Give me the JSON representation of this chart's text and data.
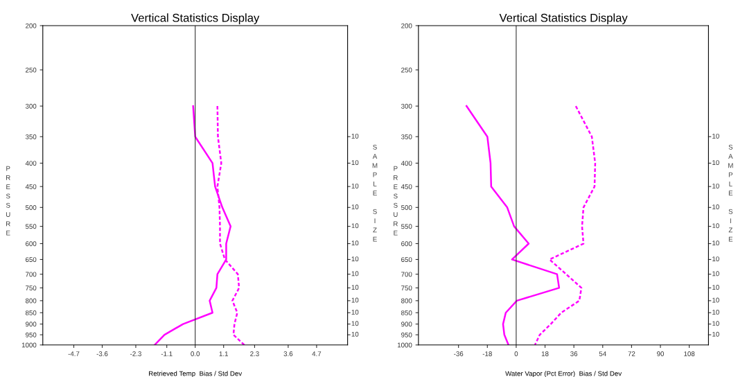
{
  "chart_data": [
    {
      "type": "line",
      "title": "Vertical Statistics Display",
      "xlabel": "Retrieved Temp  Bias / Std Dev",
      "ylabel": "PRESSURE",
      "y2label": "SAMPLE SIZE",
      "x": [
        300,
        350,
        400,
        450,
        500,
        550,
        600,
        650,
        700,
        750,
        800,
        850,
        900,
        950,
        1000
      ],
      "orientation": "horizontal",
      "log": "y",
      "series": [
        {
          "color": "#ff00ff",
          "line_style": "solid",
          "values": [
            -0.08,
            0.0,
            0.67,
            0.77,
            1.05,
            1.37,
            1.2,
            1.2,
            0.86,
            0.82,
            0.56,
            0.67,
            -0.47,
            -1.19,
            -1.57
          ]
        },
        {
          "color": "#ff00ff",
          "line_style": "dotted",
          "values": [
            0.86,
            0.88,
            1.01,
            0.86,
            0.94,
            0.96,
            0.96,
            1.15,
            1.65,
            1.7,
            1.44,
            1.63,
            1.52,
            1.48,
            1.9
          ]
        }
      ],
      "xlim": [
        -5.9,
        5.9
      ],
      "xticks": [
        -4.7,
        -3.6,
        -2.3,
        -1.1,
        {
          "value": 0,
          "label": "0.0"
        },
        1.1,
        2.3,
        3.6,
        4.7
      ],
      "ylim": [
        1000,
        200
      ],
      "yticks": [
        200,
        250,
        300,
        350,
        400,
        450,
        500,
        550,
        600,
        650,
        700,
        750,
        800,
        850,
        900,
        950,
        1000
      ],
      "annotations": [
        "10",
        "10",
        "10",
        "10",
        "10",
        "10",
        "10",
        "10",
        "10",
        "10",
        "10",
        "10",
        "10"
      ],
      "ref_lines": [
        {
          "axis": "x",
          "value": 0,
          "color": "#333333"
        }
      ],
      "grid": false
    },
    {
      "type": "line",
      "title": "Vertical Statistics Display",
      "xlabel": "Water Vapor (Pct Error)  Bias / Std Dev",
      "ylabel": "PRESSURE",
      "y2label": "SAMPLE SIZE",
      "x": [
        300,
        350,
        400,
        450,
        500,
        550,
        600,
        650,
        700,
        750,
        800,
        850,
        900,
        950,
        1000
      ],
      "orientation": "horizontal",
      "log": "y",
      "series": [
        {
          "color": "#ff00ff",
          "line_style": "solid",
          "values": [
            -31,
            -18,
            -16,
            -15.6,
            -5.6,
            -1.3,
            7.8,
            -2.6,
            25.5,
            26.8,
            0.4,
            -6.5,
            -8.2,
            -7.4,
            -4.8
          ]
        },
        {
          "color": "#ff00ff",
          "line_style": "dotted",
          "values": [
            37.2,
            47.2,
            49.3,
            48.9,
            42,
            41.1,
            42,
            20.8,
            31.2,
            40.7,
            39.4,
            28.1,
            21.6,
            14.7,
            11.7
          ]
        }
      ],
      "xlim": [
        -61,
        120
      ],
      "xticks": [
        -36,
        -18,
        0,
        18,
        36,
        54,
        72,
        90,
        108
      ],
      "ylim": [
        1000,
        200
      ],
      "yticks": [
        200,
        250,
        300,
        350,
        400,
        450,
        500,
        550,
        600,
        650,
        700,
        750,
        800,
        850,
        900,
        950,
        1000
      ],
      "annotations": [
        "10",
        "10",
        "10",
        "10",
        "10",
        "10",
        "10",
        "10",
        "10",
        "10",
        "10",
        "10",
        "10"
      ],
      "ref_lines": [
        {
          "axis": "x",
          "value": 0,
          "color": "#333333"
        }
      ],
      "grid": false
    }
  ]
}
